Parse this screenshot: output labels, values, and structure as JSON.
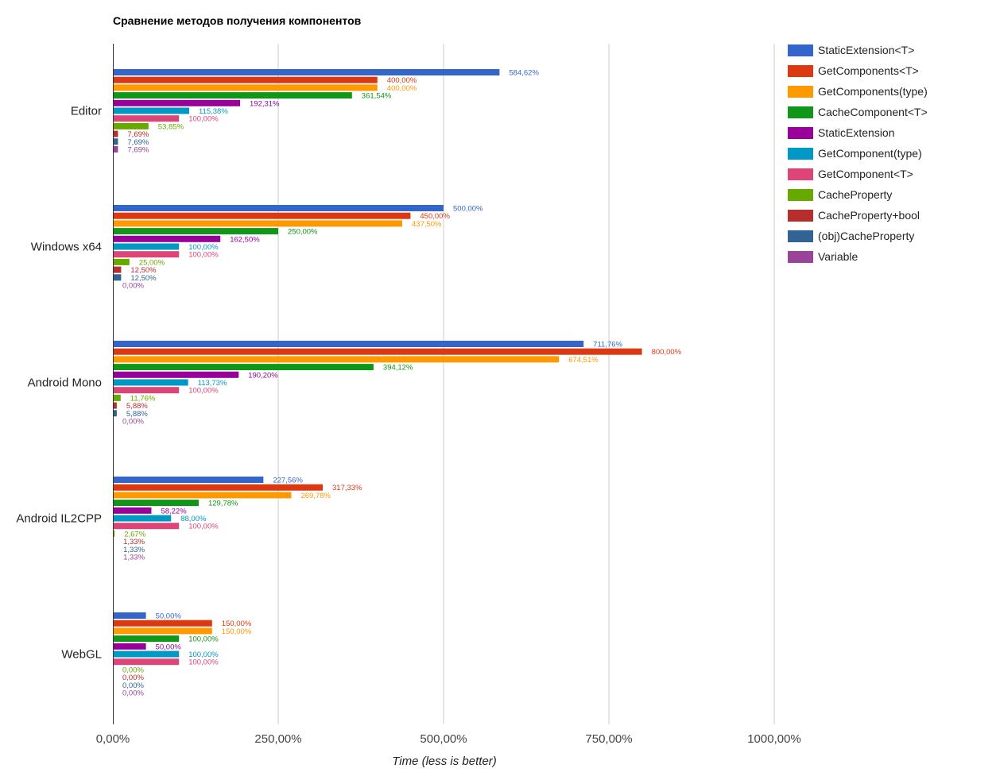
{
  "chart_data": {
    "type": "bar",
    "orientation": "horizontal",
    "title": "Сравнение методов получения компонентов",
    "xlabel": "Time (less is better)",
    "ylabel": "",
    "xlim": [
      0,
      1000
    ],
    "x_ticks": [
      0,
      250,
      500,
      750,
      1000
    ],
    "x_tick_labels": [
      "0,00%",
      "250,00%",
      "500,00%",
      "750,00%",
      "1000,00%"
    ],
    "grid": true,
    "legend_position": "right",
    "categories": [
      "Editor",
      "Windows x64",
      "Android Mono",
      "Android IL2CPP",
      "WebGL"
    ],
    "series": [
      {
        "name": "StaticExtension<T>",
        "color": "#3366cc",
        "values": [
          584.62,
          500.0,
          711.76,
          227.56,
          50.0
        ],
        "labels": [
          "584,62%",
          "500,00%",
          "711,76%",
          "227,56%",
          "50,00%"
        ]
      },
      {
        "name": "GetComponents<T>",
        "color": "#dc3912",
        "values": [
          400.0,
          450.0,
          800.0,
          317.33,
          150.0
        ],
        "labels": [
          "400,00%",
          "450,00%",
          "800,00%",
          "317,33%",
          "150,00%"
        ]
      },
      {
        "name": "GetComponents(type)",
        "color": "#ff9900",
        "values": [
          400.0,
          437.5,
          674.51,
          269.78,
          150.0
        ],
        "labels": [
          "400,00%",
          "437,50%",
          "674,51%",
          "269,78%",
          "150,00%"
        ]
      },
      {
        "name": "CacheComponent<T>",
        "color": "#109618",
        "values": [
          361.54,
          250.0,
          394.12,
          129.78,
          100.0
        ],
        "labels": [
          "361,54%",
          "250,00%",
          "394,12%",
          "129,78%",
          "100,00%"
        ]
      },
      {
        "name": "StaticExtension",
        "color": "#990099",
        "values": [
          192.31,
          162.5,
          190.2,
          58.22,
          50.0
        ],
        "labels": [
          "192,31%",
          "162,50%",
          "190,20%",
          "58,22%",
          "50,00%"
        ]
      },
      {
        "name": "GetComponent(type)",
        "color": "#0099c6",
        "values": [
          115.38,
          100.0,
          113.73,
          88.0,
          100.0
        ],
        "labels": [
          "115,38%",
          "100,00%",
          "113,73%",
          "88,00%",
          "100,00%"
        ]
      },
      {
        "name": "GetComponent<T>",
        "color": "#dd4477",
        "values": [
          100.0,
          100.0,
          100.0,
          100.0,
          100.0
        ],
        "labels": [
          "100,00%",
          "100,00%",
          "100,00%",
          "100,00%",
          "100,00%"
        ]
      },
      {
        "name": "CacheProperty",
        "color": "#66aa00",
        "values": [
          53.85,
          25.0,
          11.76,
          2.67,
          0.0
        ],
        "labels": [
          "53,85%",
          "25,00%",
          "11,76%",
          "2,67%",
          "0,00%"
        ]
      },
      {
        "name": "CacheProperty+bool",
        "color": "#b82e2e",
        "values": [
          7.69,
          12.5,
          5.88,
          1.33,
          0.0
        ],
        "labels": [
          "7,69%",
          "12,50%",
          "5,88%",
          "1,33%",
          "0,00%"
        ]
      },
      {
        "name": "(obj)CacheProperty",
        "color": "#316395",
        "values": [
          7.69,
          12.5,
          5.88,
          1.33,
          0.0
        ],
        "labels": [
          "7,69%",
          "12,50%",
          "5,88%",
          "1,33%",
          "0,00%"
        ]
      },
      {
        "name": "Variable",
        "color": "#994499",
        "values": [
          7.69,
          0.0,
          0.0,
          1.33,
          0.0
        ],
        "labels": [
          "7,69%",
          "0,00%",
          "0,00%",
          "1,33%",
          "0,00%"
        ]
      }
    ]
  }
}
